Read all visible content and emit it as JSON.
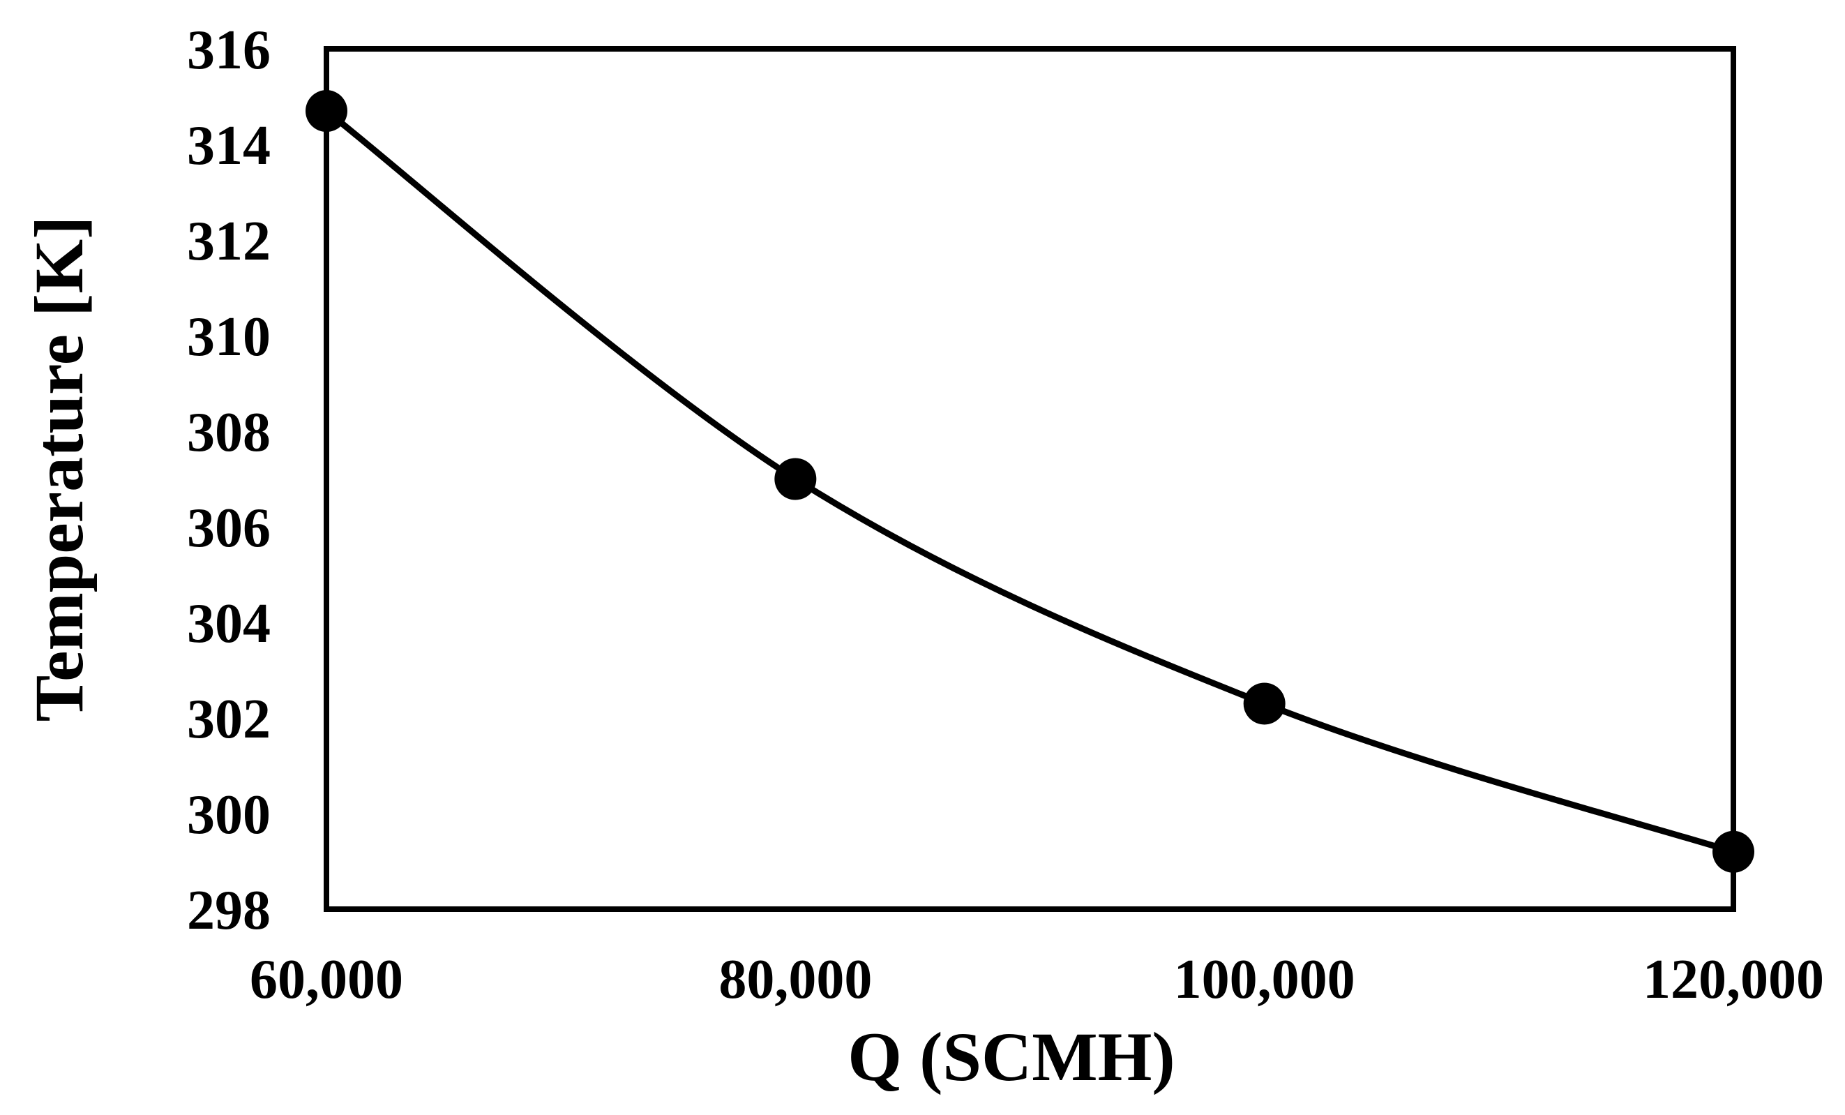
{
  "chart_data": {
    "type": "line",
    "title": "",
    "xlabel": "Q (SCMH)",
    "ylabel": "Temperature [K]",
    "x": [
      60000,
      80000,
      100000,
      120000
    ],
    "series": [
      {
        "values": [
          314.7,
          307.0,
          302.3,
          299.2
        ]
      }
    ],
    "xlim": [
      60000,
      120000
    ],
    "ylim": [
      298,
      316
    ],
    "xticks": [
      60000,
      80000,
      100000,
      120000
    ],
    "xtick_labels": [
      "60,000",
      "80,000",
      "100,000",
      "120,000"
    ],
    "yticks": [
      298,
      300,
      302,
      304,
      306,
      308,
      310,
      312,
      314,
      316
    ],
    "ytick_labels": [
      "298",
      "300",
      "302",
      "304",
      "306",
      "308",
      "310",
      "312",
      "314",
      "316"
    ],
    "smooth_line": true,
    "markers": "filled-circle",
    "grid": false,
    "legend": "none",
    "colors": {
      "line": "#000000",
      "marker": "#000000",
      "frame": "#000000"
    }
  }
}
